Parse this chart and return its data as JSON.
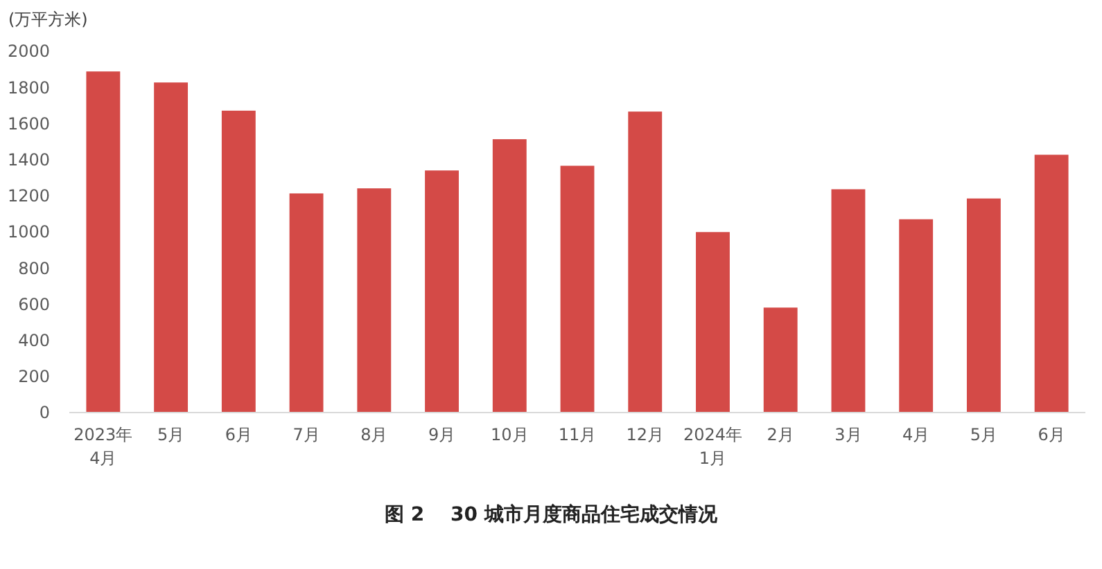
{
  "chart_data": {
    "type": "bar",
    "title": "图 2　 30 城市月度商品住宅成交情况",
    "ylabel": "(万平方米)",
    "categories": [
      "2023年\n4月",
      "5月",
      "6月",
      "7月",
      "8月",
      "9月",
      "10月",
      "11月",
      "12月",
      "2024年\n1月",
      "2月",
      "3月",
      "4月",
      "5月",
      "6月"
    ],
    "values": [
      1888,
      1827,
      1671,
      1213,
      1241,
      1340,
      1513,
      1366,
      1666,
      999,
      581,
      1236,
      1070,
      1185,
      1427
    ],
    "color": "#d44a47",
    "ylim": [
      0,
      2000
    ],
    "yticks": [
      0,
      200,
      400,
      600,
      800,
      1000,
      1200,
      1400,
      1600,
      1800,
      2000
    ],
    "grid": false
  }
}
